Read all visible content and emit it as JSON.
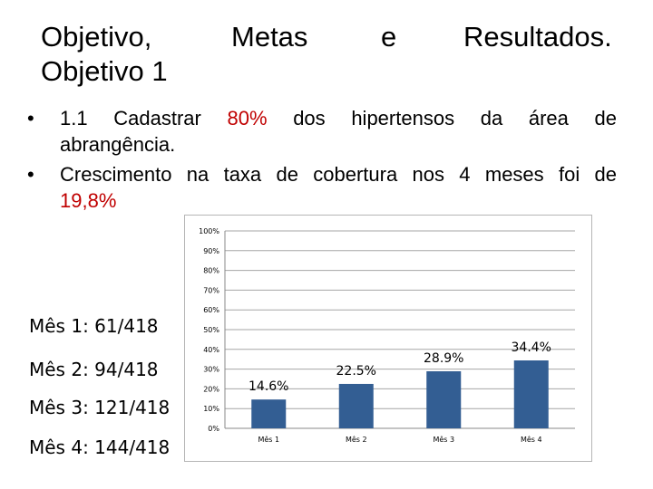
{
  "title": {
    "word1": "Objetivo,",
    "word2": "Metas",
    "word3": "e",
    "word4": "Resultados.",
    "line2": "Objetivo 1"
  },
  "bullets": [
    {
      "marker": "•",
      "pre": "1.1 Cadastrar ",
      "highlight": "80%",
      "post": " dos hipertensos da área de",
      "line2": "abrangência."
    },
    {
      "marker": "•",
      "pre": "Crescimento na taxa de cobertura nos 4 meses foi de",
      "highlight": "19,8%"
    }
  ],
  "side_labels": [
    "Mês 1: 61/418",
    "Mês 2: 94/418",
    "Mês 3: 121/418",
    "Mês 4: 144/418"
  ],
  "colors": {
    "bar": "#335e93",
    "highlight": "#c00000",
    "grid": "#a6a6a6"
  },
  "chart_data": {
    "type": "bar",
    "categories": [
      "Mês 1",
      "Mês 2",
      "Mês 3",
      "Mês 4"
    ],
    "values": [
      14.6,
      22.5,
      28.9,
      34.4
    ],
    "data_labels": [
      "14.6%",
      "22.5%",
      "28.9%",
      "34.4%"
    ],
    "y_ticks": [
      "0%",
      "10%",
      "20%",
      "30%",
      "40%",
      "50%",
      "60%",
      "70%",
      "80%",
      "90%",
      "100%"
    ],
    "ylim": [
      0,
      100
    ],
    "grid": true,
    "legend": false
  }
}
